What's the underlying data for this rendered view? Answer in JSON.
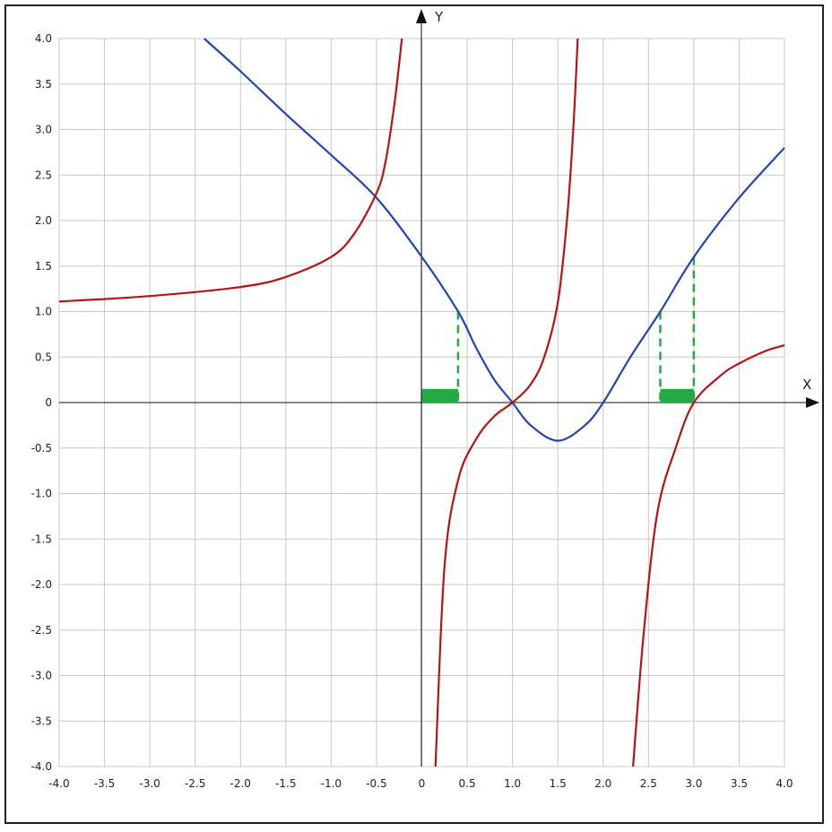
{
  "chart_data": {
    "type": "line",
    "xlabel": "X",
    "ylabel": "Y",
    "xlim": [
      -4.0,
      4.0
    ],
    "ylim": [
      -4.0,
      4.0
    ],
    "x_ticks": [
      "-4.0",
      "-3.5",
      "-3.0",
      "-2.5",
      "-2.0",
      "-1.5",
      "-1.0",
      "-0.5",
      "0",
      "0.5",
      "1.0",
      "1.5",
      "2.0",
      "2.5",
      "3.0",
      "3.5",
      "4.0"
    ],
    "y_ticks": [
      "4.0",
      "3.5",
      "3.0",
      "2.5",
      "2.0",
      "1.5",
      "1.0",
      "0.5",
      "0",
      "-0.5",
      "-1.0",
      "-1.5",
      "-2.0",
      "-2.5",
      "-3.0",
      "-3.5",
      "-4.0"
    ],
    "grid": true,
    "series": [
      {
        "color": "#2244bb",
        "points": [
          [
            -2.4,
            4.0
          ],
          [
            -2.0,
            3.64
          ],
          [
            -1.5,
            3.17
          ],
          [
            -1.0,
            2.72
          ],
          [
            -0.5,
            2.25
          ],
          [
            0.0,
            1.6
          ],
          [
            0.4,
            1.0
          ],
          [
            0.6,
            0.6
          ],
          [
            0.8,
            0.25
          ],
          [
            1.0,
            0.0
          ],
          [
            1.2,
            -0.25
          ],
          [
            1.5,
            -0.42
          ],
          [
            1.8,
            -0.25
          ],
          [
            2.0,
            0.0
          ],
          [
            2.3,
            0.5
          ],
          [
            2.63,
            1.0
          ],
          [
            3.0,
            1.6
          ],
          [
            3.5,
            2.25
          ],
          [
            4.0,
            2.8
          ]
        ]
      },
      {
        "color": "#b81414",
        "points": [
          [
            -4.0,
            1.11
          ],
          [
            -3.0,
            1.17
          ],
          [
            -2.0,
            1.27
          ],
          [
            -1.5,
            1.38
          ],
          [
            -1.0,
            1.6
          ],
          [
            -0.75,
            1.85
          ],
          [
            -0.5,
            2.3
          ],
          [
            -0.4,
            2.65
          ],
          [
            -0.3,
            3.3
          ],
          [
            -0.22,
            4.0
          ]
        ]
      },
      {
        "color": "#b81414",
        "points": [
          [
            0.15,
            -4.0
          ],
          [
            0.25,
            -1.8
          ],
          [
            0.4,
            -0.85
          ],
          [
            0.6,
            -0.4
          ],
          [
            0.8,
            -0.15
          ],
          [
            1.0,
            0.0
          ],
          [
            1.2,
            0.2
          ],
          [
            1.35,
            0.5
          ],
          [
            1.5,
            1.1
          ],
          [
            1.6,
            2.0
          ],
          [
            1.67,
            3.0
          ],
          [
            1.72,
            4.0
          ]
        ]
      },
      {
        "color": "#b81414",
        "points": [
          [
            2.33,
            -4.0
          ],
          [
            2.45,
            -2.5
          ],
          [
            2.6,
            -1.2
          ],
          [
            2.8,
            -0.5
          ],
          [
            3.0,
            0.0
          ],
          [
            3.3,
            0.3
          ],
          [
            3.5,
            0.43
          ],
          [
            3.8,
            0.57
          ],
          [
            4.0,
            0.63
          ]
        ]
      }
    ],
    "highlights": [
      {
        "color": "#22aa44",
        "interval": [
          0.0,
          0.4
        ],
        "dashed_x": 0.4,
        "dashed_top": 1.0
      },
      {
        "color": "#22aa44",
        "interval": [
          2.63,
          3.0
        ],
        "dashed_x": [
          2.63,
          3.0
        ],
        "dashed_top": [
          1.0,
          1.6
        ]
      }
    ]
  }
}
